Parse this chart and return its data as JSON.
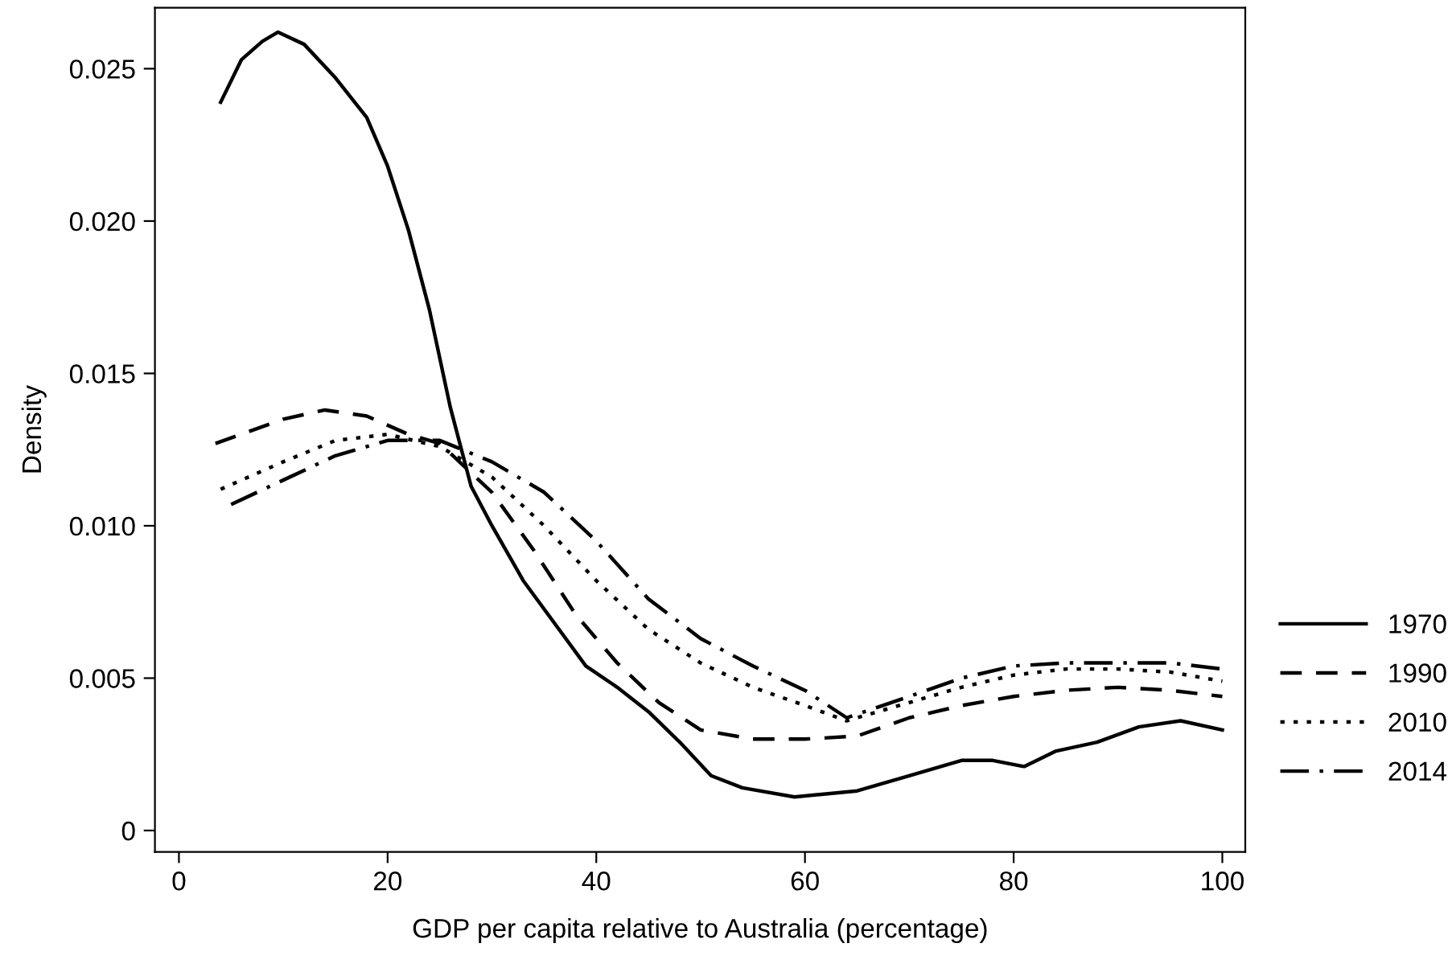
{
  "chart_data": {
    "type": "line",
    "xlabel": "GDP per capita relative to Australia (percentage)",
    "ylabel": "Density",
    "xlim": [
      -2.3,
      102.2
    ],
    "xticks": [
      0,
      20,
      40,
      60,
      80,
      100
    ],
    "ylim": [
      -0.0007,
      0.027
    ],
    "yticks": [
      0,
      0.005,
      {
        "value": 0.01,
        "label": "0.010"
      },
      0.015,
      {
        "value": 0.02,
        "label": "0.020"
      },
      0.025
    ],
    "grid": false,
    "legend": "right",
    "marker": "none",
    "series": [
      {
        "name": "1970",
        "color": "#000000",
        "line_style": "solid",
        "x": [
          4,
          6,
          8,
          9.5,
          12,
          15,
          18,
          20,
          22,
          24,
          26,
          28,
          30,
          33,
          36,
          39,
          42,
          45,
          48,
          51,
          54,
          59,
          65,
          70,
          75,
          78,
          81,
          84,
          88,
          92,
          96,
          100
        ],
        "values": [
          0.0239,
          0.0253,
          0.0259,
          0.0262,
          0.0258,
          0.0247,
          0.0234,
          0.0218,
          0.0197,
          0.0171,
          0.0139,
          0.0113,
          0.01,
          0.0082,
          0.0068,
          0.0054,
          0.0047,
          0.0039,
          0.0029,
          0.0018,
          0.0014,
          0.0011,
          0.0013,
          0.0018,
          0.0023,
          0.0023,
          0.0021,
          0.0026,
          0.0029,
          0.0034,
          0.0036,
          0.0033
        ]
      },
      {
        "name": "1990",
        "color": "#000000",
        "line_style": "dashed",
        "x": [
          3.5,
          10,
          14,
          18,
          22,
          25,
          30,
          34,
          38,
          42,
          46,
          50,
          55,
          60,
          65,
          70,
          75,
          80,
          85,
          90,
          95,
          100
        ],
        "values": [
          0.0127,
          0.0135,
          0.0138,
          0.0136,
          0.013,
          0.0127,
          0.0111,
          0.0092,
          0.0071,
          0.0055,
          0.0042,
          0.0033,
          0.003,
          0.003,
          0.0031,
          0.0037,
          0.0041,
          0.0044,
          0.0046,
          0.0047,
          0.0046,
          0.0044
        ]
      },
      {
        "name": "2010",
        "color": "#000000",
        "line_style": "dotted",
        "x": [
          4,
          10,
          15,
          20,
          25,
          30,
          35,
          40,
          45,
          50,
          55,
          60,
          64,
          70,
          75,
          80,
          85,
          90,
          95,
          100
        ],
        "values": [
          0.0112,
          0.0121,
          0.0128,
          0.013,
          0.0126,
          0.0116,
          0.01,
          0.0082,
          0.0066,
          0.0055,
          0.0047,
          0.0041,
          0.0036,
          0.0042,
          0.0047,
          0.0051,
          0.0053,
          0.0053,
          0.0052,
          0.0049
        ]
      },
      {
        "name": "2014",
        "color": "#000000",
        "line_style": "dashdot",
        "x": [
          5,
          10,
          15,
          20,
          25,
          30,
          35,
          40,
          45,
          50,
          55,
          60,
          64,
          70,
          75,
          80,
          85,
          90,
          95,
          100
        ],
        "values": [
          0.0107,
          0.0115,
          0.0123,
          0.0128,
          0.0128,
          0.0121,
          0.0111,
          0.0095,
          0.0076,
          0.0063,
          0.0054,
          0.0046,
          0.0037,
          0.0044,
          0.005,
          0.0054,
          0.0055,
          0.0055,
          0.0055,
          0.0053
        ]
      }
    ]
  }
}
